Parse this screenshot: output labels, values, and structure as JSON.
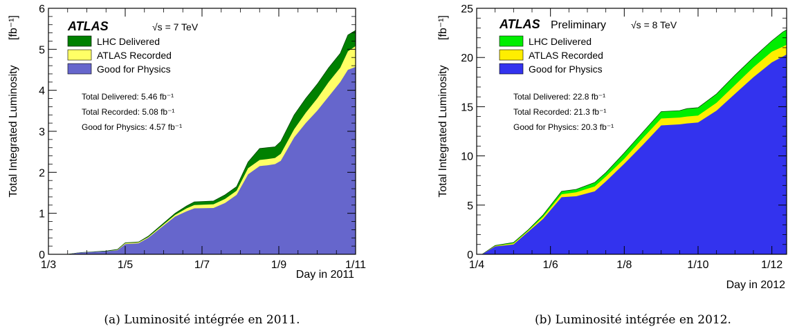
{
  "chart_data": [
    {
      "type": "area",
      "caption": "(a) Luminosité intégrée en 2011.",
      "experiment": "ATLAS",
      "experiment_suffix": "",
      "energy_label": "√s = 7 TeV",
      "xlabel": "Day in 2011",
      "ylabel": "Total Integrated Luminosity",
      "yunit": "[fb⁻¹]",
      "ylim": [
        0,
        6
      ],
      "yticks": [
        0,
        1,
        2,
        3,
        4,
        5,
        6
      ],
      "xlim": [
        0,
        8
      ],
      "xticks": [
        {
          "pos": 0,
          "label": "1/3"
        },
        {
          "pos": 2,
          "label": "1/5"
        },
        {
          "pos": 4,
          "label": "1/7"
        },
        {
          "pos": 6,
          "label": "1/9"
        },
        {
          "pos": 8,
          "label": "1/11"
        }
      ],
      "series": [
        {
          "name": "LHC Delivered",
          "color": "#008000"
        },
        {
          "name": "ATLAS Recorded",
          "color": "#ffff66"
        },
        {
          "name": "Good for Physics",
          "color": "#6666cc"
        }
      ],
      "x": [
        0.5,
        0.8,
        1.5,
        1.8,
        2.0,
        2.35,
        2.6,
        3.0,
        3.3,
        3.6,
        3.8,
        4.3,
        4.6,
        4.9,
        5.2,
        5.5,
        5.7,
        5.9,
        6.05,
        6.4,
        6.7,
        7.0,
        7.3,
        7.6,
        7.8,
        8.0
      ],
      "delivered": [
        0,
        0.04,
        0.08,
        0.12,
        0.28,
        0.3,
        0.44,
        0.76,
        1.0,
        1.18,
        1.28,
        1.3,
        1.45,
        1.65,
        2.25,
        2.58,
        2.6,
        2.62,
        2.75,
        3.4,
        3.8,
        4.15,
        4.55,
        4.9,
        5.35,
        5.46
      ],
      "recorded": [
        0,
        0.04,
        0.07,
        0.11,
        0.27,
        0.29,
        0.42,
        0.73,
        0.96,
        1.12,
        1.2,
        1.22,
        1.35,
        1.55,
        2.1,
        2.3,
        2.32,
        2.35,
        2.45,
        3.05,
        3.45,
        3.8,
        4.2,
        4.55,
        4.95,
        5.08
      ],
      "good": [
        0,
        0.04,
        0.07,
        0.1,
        0.25,
        0.27,
        0.4,
        0.7,
        0.92,
        1.05,
        1.12,
        1.13,
        1.25,
        1.45,
        1.95,
        2.15,
        2.17,
        2.2,
        2.28,
        2.85,
        3.2,
        3.5,
        3.85,
        4.2,
        4.5,
        4.57
      ],
      "annotations": [
        "Total Delivered: 5.46 fb⁻¹",
        "Total Recorded: 5.08 fb⁻¹",
        "Good for Physics: 4.57 fb⁻¹"
      ]
    },
    {
      "type": "area",
      "caption": "(b) Luminosité intégrée en 2012.",
      "experiment": "ATLAS",
      "experiment_suffix": "Preliminary",
      "energy_label": "√s = 8 TeV",
      "xlabel": "Day in 2012",
      "ylabel": "Total Integrated Luminosity",
      "yunit": "[fb⁻¹]",
      "ylim": [
        0,
        25
      ],
      "yticks": [
        0,
        5,
        10,
        15,
        20,
        25
      ],
      "xlim": [
        0,
        8.4
      ],
      "xticks": [
        {
          "pos": 0,
          "label": "1/4"
        },
        {
          "pos": 2,
          "label": "1/6"
        },
        {
          "pos": 4,
          "label": "1/8"
        },
        {
          "pos": 6,
          "label": "1/10"
        },
        {
          "pos": 8,
          "label": "1/12"
        }
      ],
      "series": [
        {
          "name": "LHC Delivered",
          "color": "#00ee00"
        },
        {
          "name": "ATLAS Recorded",
          "color": "#ffee00"
        },
        {
          "name": "Good for Physics",
          "color": "#3333ee"
        }
      ],
      "x": [
        0.15,
        0.5,
        1.0,
        1.4,
        1.8,
        2.3,
        2.7,
        3.2,
        3.5,
        4.0,
        4.5,
        5.0,
        5.5,
        5.7,
        6.0,
        6.5,
        7.0,
        7.5,
        8.0,
        8.3,
        8.4
      ],
      "delivered": [
        0,
        0.9,
        1.2,
        2.5,
        4.0,
        6.4,
        6.6,
        7.3,
        8.3,
        10.3,
        12.4,
        14.5,
        14.6,
        14.8,
        14.9,
        16.3,
        18.2,
        20.0,
        21.7,
        22.6,
        22.8
      ],
      "recorded": [
        0,
        0.85,
        1.1,
        2.4,
        3.8,
        6.1,
        6.3,
        6.9,
        7.9,
        9.7,
        11.8,
        13.8,
        13.9,
        14.0,
        14.1,
        15.4,
        17.2,
        19.0,
        20.6,
        21.1,
        21.3
      ],
      "good": [
        0,
        0.8,
        1.0,
        2.3,
        3.6,
        5.8,
        5.9,
        6.4,
        7.4,
        9.2,
        11.1,
        13.1,
        13.2,
        13.3,
        13.4,
        14.6,
        16.3,
        18.0,
        19.5,
        20.1,
        20.3
      ],
      "annotations": [
        "Total Delivered: 22.8 fb⁻¹",
        "Total Recorded: 21.3 fb⁻¹",
        "Good for Physics: 20.3 fb⁻¹"
      ]
    }
  ]
}
